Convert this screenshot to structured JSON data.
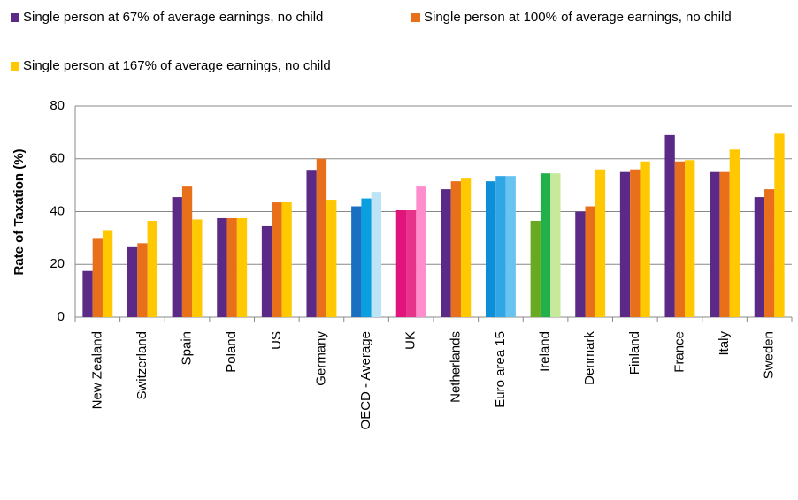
{
  "chart_data": {
    "type": "bar",
    "y_label": "Rate of Taxation (%)",
    "categories": [
      "New Zealand",
      "Switzerland",
      "Spain",
      "Poland",
      "US",
      "Germany",
      "OECD - Average",
      "UK",
      "Netherlands",
      "Euro area 15",
      "Ireland",
      "Denmark",
      "Finland",
      "France",
      "Italy",
      "Sweden"
    ],
    "series": [
      {
        "name": "Single person at 67% of average earnings, no child",
        "color": "#5b2a86",
        "values": [
          17.5,
          26.5,
          45.5,
          37.5,
          34.5,
          55.5,
          42,
          40.5,
          48.5,
          51.5,
          36.5,
          40,
          55,
          69,
          55,
          45.5
        ],
        "colors": [
          "#5b2a86",
          "#5b2a86",
          "#5b2a86",
          "#5b2a86",
          "#5b2a86",
          "#5b2a86",
          "#1a6fc0",
          "#e0147a",
          "#5b2a86",
          "#0d8fd8",
          "#6aaa22",
          "#5b2a86",
          "#5b2a86",
          "#5b2a86",
          "#5b2a86",
          "#5b2a86"
        ]
      },
      {
        "name": "Single person at 100% of average earnings, no child",
        "color": "#e8701a",
        "values": [
          30,
          28,
          49.5,
          37.5,
          43.5,
          60,
          45,
          40.5,
          51.5,
          53.5,
          54.5,
          42,
          56,
          59,
          55,
          48.5
        ],
        "colors": [
          "#e8701a",
          "#e8701a",
          "#e8701a",
          "#e8701a",
          "#e8701a",
          "#e8701a",
          "#0aa0e0",
          "#e8338a",
          "#e8701a",
          "#30a6e6",
          "#22b04b",
          "#e8701a",
          "#e8701a",
          "#e8701a",
          "#e8701a",
          "#e8701a"
        ]
      },
      {
        "name": "Single person at 167% of average earnings, no child",
        "color": "#ffc800",
        "values": [
          33,
          36.5,
          37,
          37.5,
          43.5,
          44.5,
          47.5,
          49.5,
          52.5,
          53.5,
          54.5,
          56,
          59,
          59.5,
          63.5,
          69.5
        ],
        "colors": [
          "#ffc800",
          "#ffc800",
          "#ffc800",
          "#ffc800",
          "#ffc800",
          "#ffc800",
          "#bde3f7",
          "#ff8ccc",
          "#ffc800",
          "#69c3f0",
          "#c8e89a",
          "#ffc800",
          "#ffc800",
          "#ffc800",
          "#ffc800",
          "#ffc800"
        ]
      }
    ],
    "ylim": [
      0,
      80
    ],
    "yticks": [
      0,
      20,
      40,
      60,
      80
    ],
    "grid": true
  }
}
